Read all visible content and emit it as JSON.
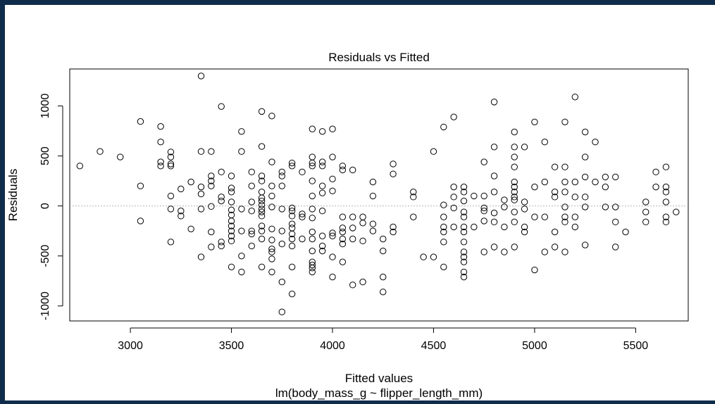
{
  "chart_data": {
    "type": "scatter",
    "title": "Residuals vs Fitted",
    "xlabel": "Fitted values",
    "subtitle": "lm(body_mass_g ~ flipper_length_mm)",
    "ylabel": "Residuals",
    "xlim": [
      2700,
      5760
    ],
    "ylim": [
      -1150,
      1370
    ],
    "xticks": [
      3000,
      3500,
      4000,
      4500,
      5000,
      5500
    ],
    "yticks": [
      -1000,
      -500,
      0,
      500,
      1000
    ],
    "reference_line_y": 0,
    "marker": "open-circle",
    "grid": false,
    "legend": "none",
    "points": [
      [
        2750,
        400
      ],
      [
        2850,
        545
      ],
      [
        2950,
        490
      ],
      [
        3050,
        845
      ],
      [
        3050,
        200
      ],
      [
        3050,
        -150
      ],
      [
        3150,
        795
      ],
      [
        3150,
        640
      ],
      [
        3150,
        440
      ],
      [
        3150,
        400
      ],
      [
        3200,
        540
      ],
      [
        3200,
        490
      ],
      [
        3200,
        420
      ],
      [
        3200,
        400
      ],
      [
        3200,
        100
      ],
      [
        3200,
        -30
      ],
      [
        3200,
        -360
      ],
      [
        3250,
        170
      ],
      [
        3250,
        -50
      ],
      [
        3250,
        -100
      ],
      [
        3300,
        240
      ],
      [
        3300,
        -230
      ],
      [
        3350,
        1300
      ],
      [
        3350,
        545
      ],
      [
        3350,
        190
      ],
      [
        3350,
        120
      ],
      [
        3350,
        -30
      ],
      [
        3350,
        -510
      ],
      [
        3400,
        545
      ],
      [
        3400,
        300
      ],
      [
        3400,
        250
      ],
      [
        3400,
        200
      ],
      [
        3400,
        -5
      ],
      [
        3400,
        -260
      ],
      [
        3400,
        -410
      ],
      [
        3450,
        995
      ],
      [
        3450,
        340
      ],
      [
        3450,
        90
      ],
      [
        3450,
        50
      ],
      [
        3450,
        -360
      ],
      [
        3450,
        -400
      ],
      [
        3500,
        300
      ],
      [
        3500,
        180
      ],
      [
        3500,
        140
      ],
      [
        3500,
        40
      ],
      [
        3500,
        -40
      ],
      [
        3500,
        -90
      ],
      [
        3500,
        -150
      ],
      [
        3500,
        -200
      ],
      [
        3500,
        -250
      ],
      [
        3500,
        -300
      ],
      [
        3500,
        -350
      ],
      [
        3500,
        -610
      ],
      [
        3550,
        745
      ],
      [
        3550,
        545
      ],
      [
        3550,
        -30
      ],
      [
        3550,
        -250
      ],
      [
        3550,
        -500
      ],
      [
        3550,
        -660
      ],
      [
        3600,
        340
      ],
      [
        3600,
        200
      ],
      [
        3600,
        40
      ],
      [
        3600,
        -250
      ],
      [
        3600,
        -280
      ],
      [
        3600,
        -400
      ],
      [
        3600,
        -50
      ],
      [
        3650,
        945
      ],
      [
        3650,
        595
      ],
      [
        3650,
        300
      ],
      [
        3650,
        250
      ],
      [
        3650,
        140
      ],
      [
        3650,
        80
      ],
      [
        3650,
        50
      ],
      [
        3650,
        10
      ],
      [
        3650,
        -30
      ],
      [
        3650,
        -60
      ],
      [
        3650,
        -100
      ],
      [
        3650,
        -200
      ],
      [
        3650,
        -250
      ],
      [
        3650,
        -330
      ],
      [
        3650,
        -610
      ],
      [
        3700,
        900
      ],
      [
        3700,
        440
      ],
      [
        3700,
        200
      ],
      [
        3700,
        100
      ],
      [
        3700,
        -10
      ],
      [
        3700,
        -230
      ],
      [
        3700,
        -340
      ],
      [
        3700,
        -430
      ],
      [
        3700,
        -460
      ],
      [
        3700,
        -530
      ],
      [
        3700,
        -660
      ],
      [
        3750,
        340
      ],
      [
        3750,
        300
      ],
      [
        3750,
        200
      ],
      [
        3750,
        -30
      ],
      [
        3750,
        -250
      ],
      [
        3750,
        -380
      ],
      [
        3750,
        -760
      ],
      [
        3750,
        -1060
      ],
      [
        3800,
        430
      ],
      [
        3800,
        400
      ],
      [
        3800,
        -20
      ],
      [
        3800,
        -50
      ],
      [
        3800,
        -100
      ],
      [
        3800,
        -180
      ],
      [
        3800,
        -220
      ],
      [
        3800,
        -280
      ],
      [
        3800,
        -330
      ],
      [
        3800,
        -400
      ],
      [
        3800,
        -610
      ],
      [
        3800,
        -880
      ],
      [
        3850,
        340
      ],
      [
        3850,
        -80
      ],
      [
        3850,
        -110
      ],
      [
        3850,
        -330
      ],
      [
        3900,
        770
      ],
      [
        3900,
        490
      ],
      [
        3900,
        430
      ],
      [
        3900,
        400
      ],
      [
        3900,
        250
      ],
      [
        3900,
        100
      ],
      [
        3900,
        -30
      ],
      [
        3900,
        -120
      ],
      [
        3900,
        -260
      ],
      [
        3900,
        -330
      ],
      [
        3900,
        -450
      ],
      [
        3900,
        -560
      ],
      [
        3900,
        -590
      ],
      [
        3900,
        -620
      ],
      [
        3900,
        -660
      ],
      [
        3950,
        745
      ],
      [
        3950,
        440
      ],
      [
        3950,
        400
      ],
      [
        3950,
        200
      ],
      [
        3950,
        130
      ],
      [
        3950,
        -50
      ],
      [
        3950,
        -300
      ],
      [
        3950,
        -400
      ],
      [
        3950,
        -450
      ],
      [
        4000,
        770
      ],
      [
        4000,
        490
      ],
      [
        4000,
        270
      ],
      [
        4000,
        150
      ],
      [
        4000,
        -270
      ],
      [
        4000,
        -300
      ],
      [
        4000,
        -510
      ],
      [
        4000,
        -710
      ],
      [
        4050,
        400
      ],
      [
        4050,
        360
      ],
      [
        4050,
        -110
      ],
      [
        4050,
        -220
      ],
      [
        4050,
        -260
      ],
      [
        4050,
        -330
      ],
      [
        4050,
        -380
      ],
      [
        4050,
        -560
      ],
      [
        4100,
        360
      ],
      [
        4100,
        -110
      ],
      [
        4100,
        -220
      ],
      [
        4100,
        -330
      ],
      [
        4100,
        -790
      ],
      [
        4150,
        -110
      ],
      [
        4150,
        -170
      ],
      [
        4150,
        -350
      ],
      [
        4150,
        -760
      ],
      [
        4200,
        240
      ],
      [
        4200,
        100
      ],
      [
        4200,
        -180
      ],
      [
        4200,
        -250
      ],
      [
        4250,
        -330
      ],
      [
        4250,
        -450
      ],
      [
        4250,
        -710
      ],
      [
        4250,
        -860
      ],
      [
        4300,
        420
      ],
      [
        4300,
        320
      ],
      [
        4300,
        -210
      ],
      [
        4300,
        -260
      ],
      [
        4400,
        140
      ],
      [
        4400,
        90
      ],
      [
        4400,
        -110
      ],
      [
        4450,
        -510
      ],
      [
        4500,
        545
      ],
      [
        4500,
        -510
      ],
      [
        4550,
        790
      ],
      [
        4550,
        10
      ],
      [
        4550,
        -110
      ],
      [
        4550,
        -210
      ],
      [
        4550,
        -260
      ],
      [
        4550,
        -360
      ],
      [
        4550,
        -610
      ],
      [
        4600,
        890
      ],
      [
        4600,
        190
      ],
      [
        4600,
        90
      ],
      [
        4600,
        -20
      ],
      [
        4600,
        -210
      ],
      [
        4650,
        190
      ],
      [
        4650,
        140
      ],
      [
        4650,
        50
      ],
      [
        4650,
        -60
      ],
      [
        4650,
        -110
      ],
      [
        4650,
        -210
      ],
      [
        4650,
        -260
      ],
      [
        4650,
        -360
      ],
      [
        4650,
        -460
      ],
      [
        4650,
        -510
      ],
      [
        4650,
        -560
      ],
      [
        4650,
        -660
      ],
      [
        4650,
        -710
      ],
      [
        4700,
        100
      ],
      [
        4700,
        -210
      ],
      [
        4750,
        440
      ],
      [
        4750,
        100
      ],
      [
        4750,
        -20
      ],
      [
        4750,
        -50
      ],
      [
        4750,
        -150
      ],
      [
        4750,
        -460
      ],
      [
        4800,
        1040
      ],
      [
        4800,
        590
      ],
      [
        4800,
        300
      ],
      [
        4800,
        140
      ],
      [
        4800,
        -70
      ],
      [
        4800,
        -160
      ],
      [
        4800,
        -410
      ],
      [
        4850,
        60
      ],
      [
        4850,
        -10
      ],
      [
        4850,
        -210
      ],
      [
        4850,
        -460
      ],
      [
        4900,
        740
      ],
      [
        4900,
        590
      ],
      [
        4900,
        490
      ],
      [
        4900,
        390
      ],
      [
        4900,
        240
      ],
      [
        4900,
        190
      ],
      [
        4900,
        140
      ],
      [
        4900,
        90
      ],
      [
        4900,
        60
      ],
      [
        4900,
        -60
      ],
      [
        4900,
        -160
      ],
      [
        4900,
        -410
      ],
      [
        4950,
        590
      ],
      [
        4950,
        40
      ],
      [
        4950,
        -30
      ],
      [
        4950,
        -210
      ],
      [
        4950,
        -260
      ],
      [
        5000,
        840
      ],
      [
        5000,
        190
      ],
      [
        5000,
        -110
      ],
      [
        5000,
        -640
      ],
      [
        5050,
        640
      ],
      [
        5050,
        240
      ],
      [
        5050,
        -110
      ],
      [
        5050,
        -460
      ],
      [
        5100,
        390
      ],
      [
        5100,
        140
      ],
      [
        5100,
        90
      ],
      [
        5100,
        -260
      ],
      [
        5100,
        -410
      ],
      [
        5150,
        840
      ],
      [
        5150,
        390
      ],
      [
        5150,
        240
      ],
      [
        5150,
        140
      ],
      [
        5150,
        -10
      ],
      [
        5150,
        -110
      ],
      [
        5150,
        -160
      ],
      [
        5150,
        -460
      ],
      [
        5200,
        1090
      ],
      [
        5200,
        240
      ],
      [
        5200,
        90
      ],
      [
        5200,
        -110
      ],
      [
        5200,
        -210
      ],
      [
        5250,
        740
      ],
      [
        5250,
        490
      ],
      [
        5250,
        290
      ],
      [
        5250,
        90
      ],
      [
        5250,
        -10
      ],
      [
        5250,
        -390
      ],
      [
        5300,
        640
      ],
      [
        5300,
        240
      ],
      [
        5350,
        290
      ],
      [
        5350,
        190
      ],
      [
        5350,
        -10
      ],
      [
        5400,
        290
      ],
      [
        5400,
        -10
      ],
      [
        5400,
        -160
      ],
      [
        5400,
        -410
      ],
      [
        5450,
        -260
      ],
      [
        5550,
        40
      ],
      [
        5550,
        -60
      ],
      [
        5550,
        -160
      ],
      [
        5600,
        340
      ],
      [
        5600,
        190
      ],
      [
        5650,
        390
      ],
      [
        5650,
        190
      ],
      [
        5650,
        140
      ],
      [
        5650,
        40
      ],
      [
        5650,
        -110
      ],
      [
        5650,
        -160
      ],
      [
        5700,
        -60
      ]
    ]
  }
}
